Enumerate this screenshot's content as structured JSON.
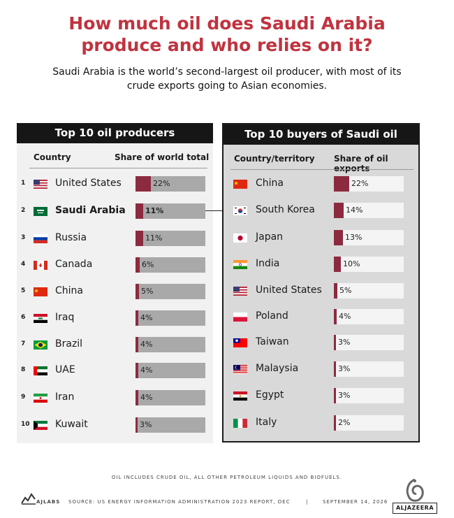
{
  "header": {
    "title_lines": [
      "How much oil does Saudi Arabia",
      "produce and who relies on it?"
    ],
    "subtitle_lines": [
      "Saudi Arabia is the world’s second-largest oil producer, with most of its",
      "crude exports going to Asian economies."
    ]
  },
  "colors": {
    "accent": "#c0333f",
    "bar": "#8c2b3f",
    "panel_header": "#161616"
  },
  "chart_data": [
    {
      "type": "bar",
      "title": "Top 10 oil producers",
      "column_headers": [
        "Country",
        "Share of world total"
      ],
      "unit": "%",
      "xlim": [
        0,
        100
      ],
      "categories": [
        "United States",
        "Saudi Arabia",
        "Russia",
        "Canada",
        "China",
        "Iraq",
        "Brazil",
        "UAE",
        "Iran",
        "Kuwait"
      ],
      "ranks": [
        "1",
        "2",
        "3",
        "4",
        "5",
        "6",
        "7",
        "8",
        "9",
        "10"
      ],
      "values": [
        22,
        11,
        11,
        6,
        5,
        4,
        4,
        4,
        4,
        3
      ],
      "labels": [
        "22%",
        "11%",
        "11%",
        "6%",
        "5%",
        "4%",
        "4%",
        "4%",
        "4%",
        "3%"
      ],
      "flags": [
        "flag-us",
        "flag-sa",
        "flag-ru",
        "flag-ca",
        "flag-cn",
        "flag-iq",
        "flag-br",
        "flag-ae",
        "flag-ir",
        "flag-kw"
      ],
      "highlight": "Saudi Arabia"
    },
    {
      "type": "bar",
      "title": "Top 10 buyers of Saudi oil",
      "column_headers": [
        "Country/territory",
        "Share of oil exports"
      ],
      "unit": "%",
      "xlim": [
        0,
        100
      ],
      "categories": [
        "China",
        "South Korea",
        "Japan",
        "India",
        "United States",
        "Poland",
        "Taiwan",
        "Malaysia",
        "Egypt",
        "Italy"
      ],
      "values": [
        22,
        14,
        13,
        10,
        5,
        4,
        3,
        3,
        3,
        2
      ],
      "labels": [
        "22%",
        "14%",
        "13%",
        "10%",
        "5%",
        "4%",
        "3%",
        "3%",
        "3%",
        "2%"
      ],
      "flags": [
        "flag-cn",
        "flag-kr",
        "flag-jp",
        "flag-in",
        "flag-us",
        "flag-pl",
        "flag-tw",
        "flag-my",
        "flag-eg",
        "flag-it"
      ]
    }
  ],
  "footer": {
    "note": "OIL INCLUDES CRUDE OIL, ALL OTHER PETROLEUM LIQUIDS AND BIOFUELS.",
    "brand": "AJLABS",
    "source": "SOURCE:  US ENERGY INFORMATION ADMINISTRATION 2023 REPORT, OEC",
    "separator": "|",
    "date": "SEPTEMBER 14, 2026",
    "logo_text": "ALJAZEERA"
  }
}
